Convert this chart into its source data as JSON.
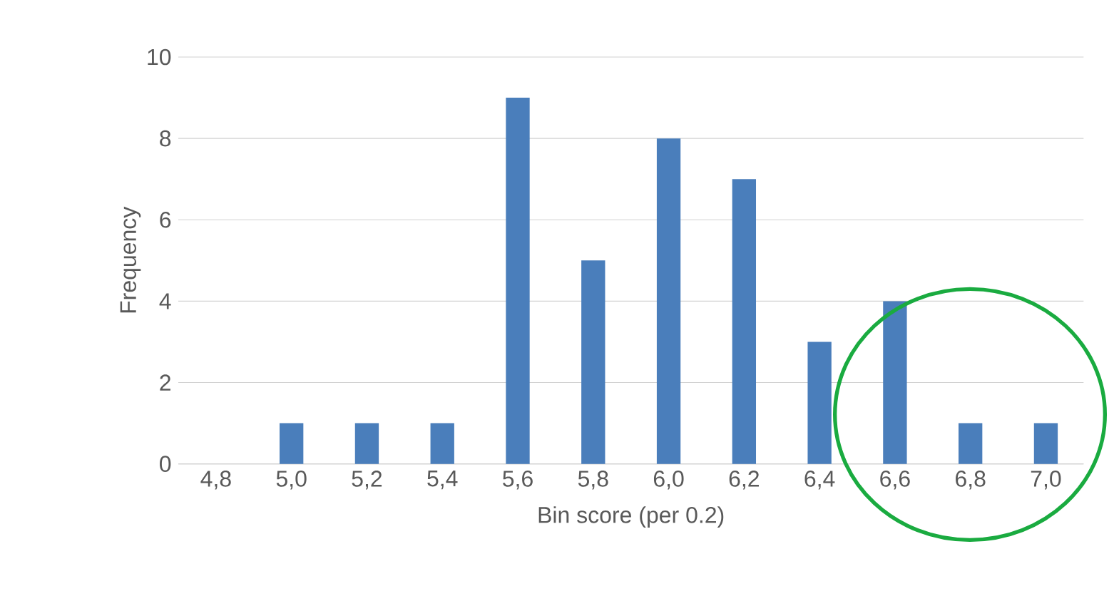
{
  "chart_data": {
    "type": "bar",
    "xlabel": "Bin score (per 0.2)",
    "ylabel": "Frequency",
    "categories": [
      "4,8",
      "5,0",
      "5,2",
      "5,4",
      "5,6",
      "5,8",
      "6,0",
      "6,2",
      "6,4",
      "6,6",
      "6,8",
      "7,0"
    ],
    "values": [
      0,
      1,
      1,
      1,
      9,
      5,
      8,
      7,
      3,
      4,
      1,
      1
    ],
    "color": "#4a7ebb",
    "ylim": [
      0,
      10
    ],
    "yticks": [
      0,
      2,
      4,
      6,
      8,
      10
    ],
    "grid": "y"
  }
}
